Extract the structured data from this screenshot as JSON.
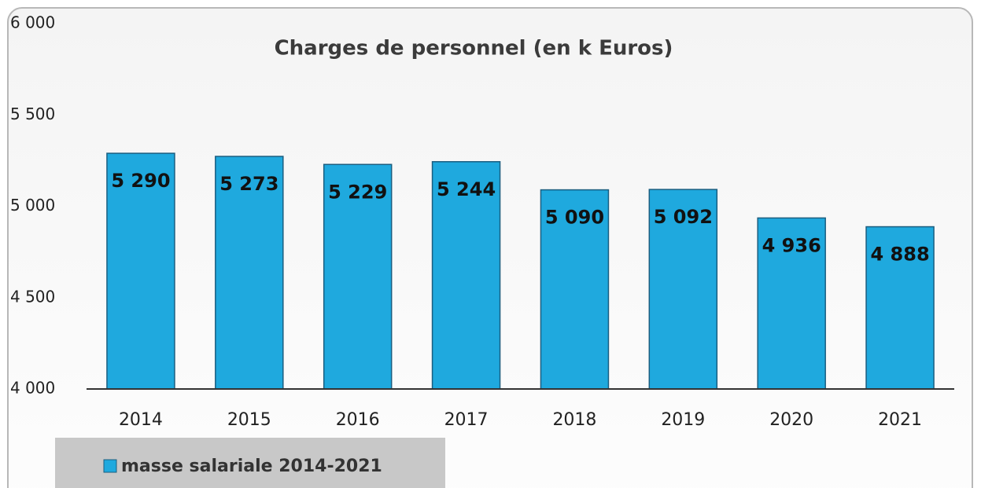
{
  "chart_data": {
    "type": "bar",
    "title": "Charges de personnel (en k Euros)",
    "categories": [
      "2014",
      "2015",
      "2016",
      "2017",
      "2018",
      "2019",
      "2020",
      "2021"
    ],
    "series": [
      {
        "name": "masse salariale 2014-2021",
        "color": "#1fa9de",
        "values": [
          5290,
          5273,
          5229,
          5244,
          5090,
          5092,
          4936,
          4888
        ],
        "value_labels": [
          "5 290",
          "5 273",
          "5 229",
          "5 244",
          "5 090",
          "5 092",
          "4 936",
          "4 888"
        ]
      }
    ],
    "ylim": [
      4000,
      6000
    ],
    "yticks": [
      {
        "value": 4000,
        "label": "4 000"
      },
      {
        "value": 4500,
        "label": "4 500"
      },
      {
        "value": 5000,
        "label": "5 000"
      },
      {
        "value": 5500,
        "label": "5 500"
      },
      {
        "value": 6000,
        "label": "6 000"
      }
    ],
    "grid": false,
    "legend": "bottom-left"
  }
}
